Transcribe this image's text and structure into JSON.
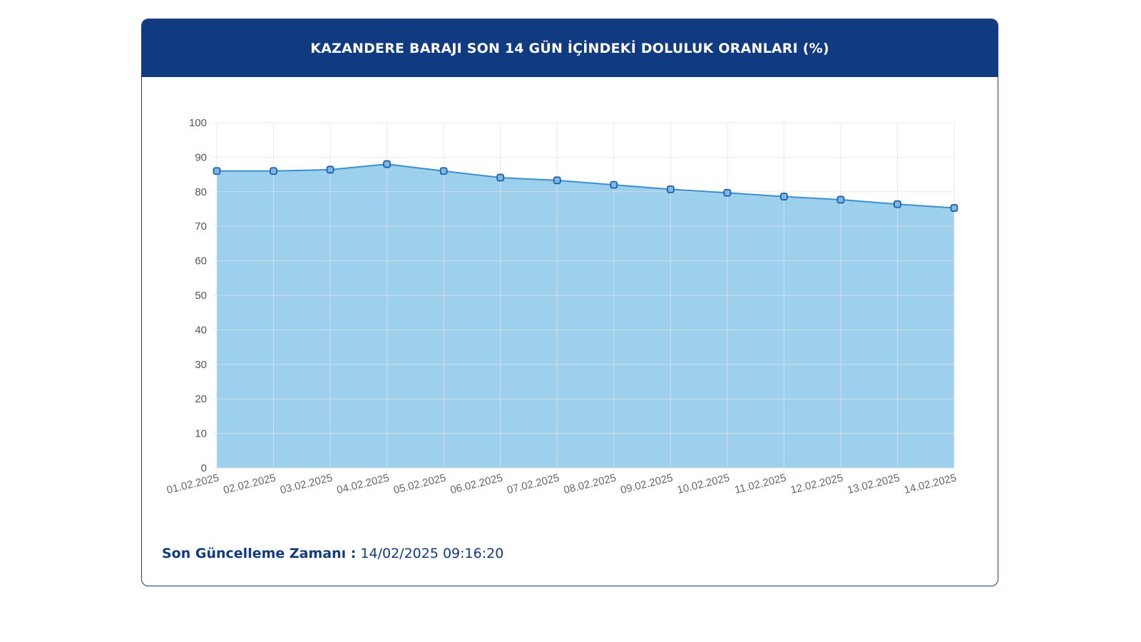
{
  "header": {
    "title": "KAZANDERE BARAJI SON 14 GÜN İÇİNDEKİ DOLULUK ORANLARI (%)"
  },
  "footer": {
    "label": "Son Güncelleme Zamanı :",
    "value": "14/02/2025 09:16:20"
  },
  "colors": {
    "header_bg": "#113b80",
    "area_fill": "#9dd0ec",
    "line": "#3a8fcf",
    "marker_stroke": "#1e5fa8",
    "marker_fill": "#7fb8e6",
    "grid": "#e3e3e3"
  },
  "chart_data": {
    "type": "area",
    "title": "KAZANDERE BARAJI SON 14 GÜN İÇİNDEKİ DOLULUK ORANLARI (%)",
    "xlabel": "",
    "ylabel": "",
    "ylim": [
      0,
      100
    ],
    "yticks": [
      0,
      10,
      20,
      30,
      40,
      50,
      60,
      70,
      80,
      90,
      100
    ],
    "grid": true,
    "legend": "none",
    "categories": [
      "01.02.2025",
      "02.02.2025",
      "03.02.2025",
      "04.02.2025",
      "05.02.2025",
      "06.02.2025",
      "07.02.2025",
      "08.02.2025",
      "09.02.2025",
      "10.02.2025",
      "11.02.2025",
      "12.02.2025",
      "13.02.2025",
      "14.02.2025"
    ],
    "series": [
      {
        "values": [
          86.0,
          86.0,
          86.4,
          88.0,
          86.0,
          84.1,
          83.3,
          82.0,
          80.7,
          79.7,
          78.6,
          77.7,
          76.4,
          75.3
        ]
      }
    ]
  }
}
